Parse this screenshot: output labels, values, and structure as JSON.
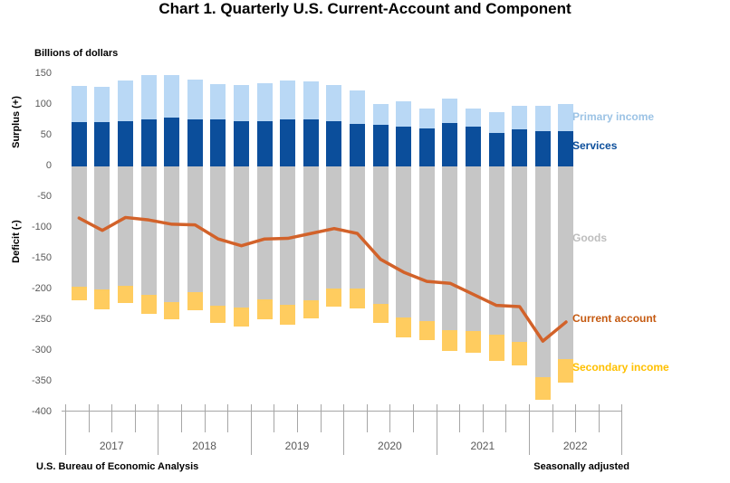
{
  "header": {
    "title": "Chart 1. Quarterly U.S. Current-Account and Component"
  },
  "axes": {
    "units_label": "Billions of dollars",
    "surplus_label": "Surplus (+)",
    "deficit_label": "Deficit (-)",
    "y_ticks": [
      150,
      100,
      50,
      0,
      -50,
      -100,
      -150,
      -200,
      -250,
      -300,
      -350,
      -400
    ],
    "year_labels": [
      "2017",
      "2018",
      "2019",
      "2020",
      "2021",
      "2022"
    ]
  },
  "legend": [
    {
      "label": "Primary income",
      "color": "#9cc3e5"
    },
    {
      "label": "Services",
      "color": "#0b4e9b"
    },
    {
      "label": "Goods",
      "color": "#bdbdbd"
    },
    {
      "label": "Current account",
      "color": "#c55a11"
    },
    {
      "label": "Secondary income",
      "color": "#ffc000"
    }
  ],
  "footer": {
    "source": "U.S. Bureau of Economic Analysis",
    "note": "Seasonally adjusted"
  },
  "chart_data": {
    "type": "bar",
    "subtype": "stacked-bars-with-line",
    "title": "Chart 1. Quarterly U.S. Current-Account and Component",
    "ylabel": "Billions of dollars",
    "ylim": [
      -400,
      150
    ],
    "grid": false,
    "legend_position": "right",
    "categories": [
      "Q1 2017",
      "Q2 2017",
      "Q3 2017",
      "Q4 2017",
      "Q1 2018",
      "Q2 2018",
      "Q3 2018",
      "Q4 2018",
      "Q1 2019",
      "Q2 2019",
      "Q3 2019",
      "Q4 2019",
      "Q1 2020",
      "Q2 2020",
      "Q3 2020",
      "Q4 2020",
      "Q1 2021",
      "Q2 2021",
      "Q3 2021",
      "Q4 2021",
      "Q1 2022",
      "Q2 2022"
    ],
    "series": [
      {
        "name": "Services",
        "stack": "surplus",
        "color": "#0b4e9b",
        "values": [
          72,
          72,
          73,
          77,
          79,
          76,
          77,
          73,
          74,
          77,
          76,
          74,
          69,
          68,
          65,
          62,
          70,
          65,
          54,
          60,
          58,
          58
        ]
      },
      {
        "name": "Primary income",
        "stack": "surplus",
        "color": "#b9d8f5",
        "values": [
          59,
          58,
          67,
          72,
          70,
          65,
          57,
          59,
          61,
          62,
          62,
          58,
          55,
          34,
          41,
          32,
          40,
          29,
          34,
          38,
          41,
          44
        ]
      },
      {
        "name": "Goods",
        "stack": "deficit",
        "color": "#c6c6c6",
        "values": [
          -195,
          -200,
          -194,
          -209,
          -220,
          -205,
          -226,
          -229,
          -216,
          -225,
          -218,
          -199,
          -198,
          -224,
          -245,
          -251,
          -266,
          -267,
          -274,
          -285,
          -342,
          -313
        ]
      },
      {
        "name": "Secondary income",
        "stack": "deficit",
        "color": "#ffcc5f",
        "values": [
          -22,
          -32,
          -28,
          -30,
          -29,
          -29,
          -29,
          -31,
          -33,
          -32,
          -29,
          -29,
          -33,
          -31,
          -33,
          -32,
          -34,
          -36,
          -42,
          -38,
          -38,
          -38
        ]
      }
    ],
    "line": {
      "name": "Current account",
      "color": "#d2622a",
      "values": [
        -84,
        -104,
        -83,
        -87,
        -94,
        -95,
        -118,
        -129,
        -118,
        -117,
        -109,
        -101,
        -109,
        -151,
        -172,
        -187,
        -190,
        -208,
        -226,
        -228,
        -284,
        -253
      ]
    }
  }
}
